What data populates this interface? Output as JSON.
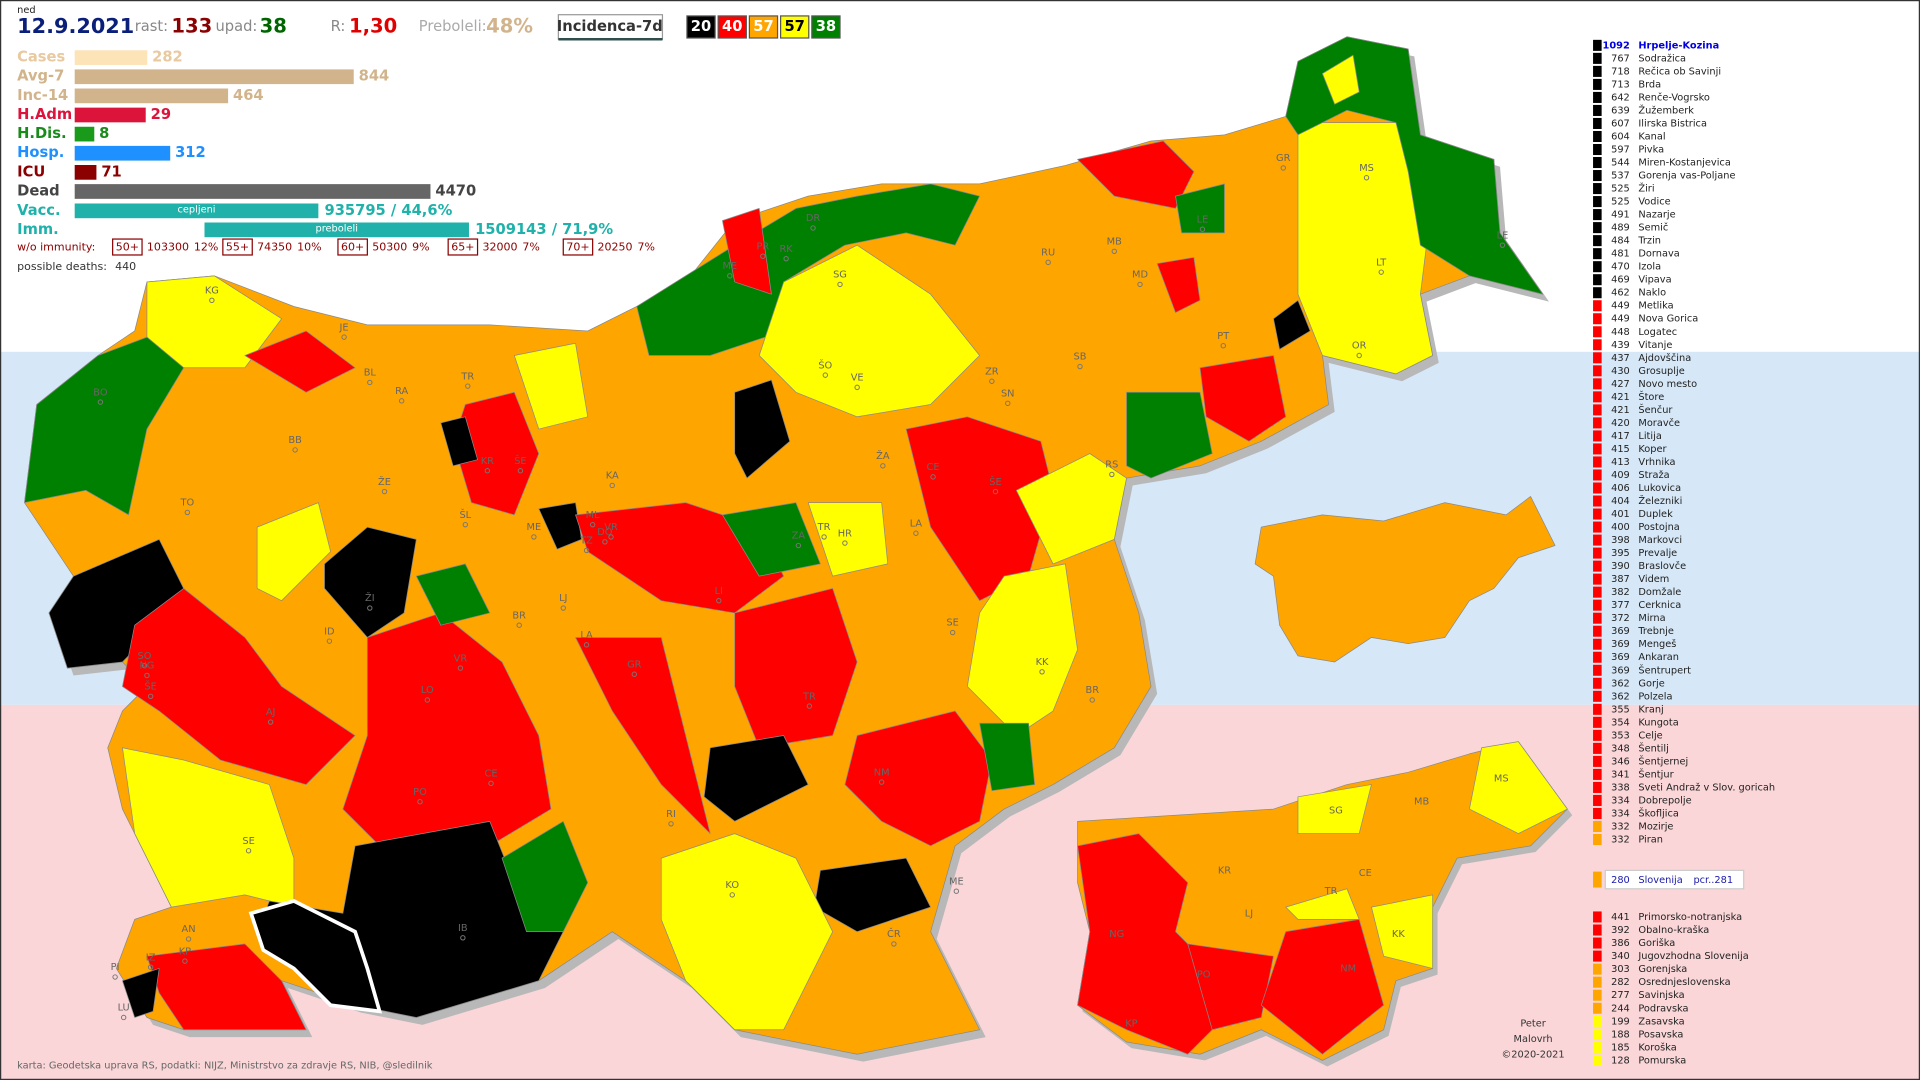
{
  "header": {
    "day": "ned",
    "date": "12.9.2021",
    "rise_label": "rast:",
    "rise": 133,
    "fall_label": "upad:",
    "fall": 38,
    "r_label": "R:",
    "r": "1,30",
    "recovered_label": "Preboleli:",
    "recovered": "48%",
    "view": "Incidenca-7d",
    "legend": [
      {
        "count": 20,
        "color": "#000000",
        "text_color": "#ffffff"
      },
      {
        "count": 40,
        "color": "#ff0000",
        "text_color": "#ffffff"
      },
      {
        "count": 57,
        "color": "#ffa500",
        "text_color": "#ffffff"
      },
      {
        "count": 57,
        "color": "#ffff00",
        "text_color": "#000000"
      },
      {
        "count": 38,
        "color": "#008000",
        "text_color": "#ffffff"
      }
    ]
  },
  "stats": [
    {
      "label": "Cases",
      "value": 282,
      "color": "#fde3b8",
      "text_color": "#e8c9a0"
    },
    {
      "label": "Avg-7",
      "value": 844,
      "color": "#d2b48c",
      "text_color": "#d2b48c"
    },
    {
      "label": "Inc-14",
      "value": 464,
      "color": "#d2b48c",
      "text_color": "#d2b48c"
    },
    {
      "label": "H.Adm",
      "value": 29,
      "color": "#dc143c",
      "text_color": "#dc143c"
    },
    {
      "label": "H.Dis.",
      "value": 8,
      "color": "#1a9a1a",
      "text_color": "#1a8a1a"
    },
    {
      "label": "Hosp.",
      "value": 312,
      "color": "#1e90ff",
      "text_color": "#1e90ff"
    },
    {
      "label": "ICU",
      "value": 71,
      "color": "#8b0000",
      "text_color": "#8b0000"
    },
    {
      "label": "Dead",
      "value": 4470,
      "color": "#666666",
      "text_color": "#444444"
    }
  ],
  "vaccination": [
    {
      "label": "Vacc.",
      "bar_label": "cepljeni",
      "value_label": "935795 / 44,6%",
      "color": "#20b2aa"
    },
    {
      "label": "Imm.",
      "bar_label": "preboleli",
      "value_label": "1509143 / 71,9%",
      "color": "#20b2aa"
    }
  ],
  "immunity": {
    "label": "w/o immunity:",
    "groups": [
      {
        "group": "50+",
        "count": 103300,
        "share": "12%"
      },
      {
        "group": "55+",
        "count": 74350,
        "share": "10%"
      },
      {
        "group": "60+",
        "count": 50300,
        "share": "9%"
      },
      {
        "group": "65+",
        "count": 32000,
        "share": "7%"
      },
      {
        "group": "70+",
        "count": 20250,
        "share": "7%"
      }
    ],
    "deaths_label": "possible deaths:",
    "deaths": 440
  },
  "ranking": [
    {
      "color": "#000000",
      "items": [
        {
          "value": 1092,
          "name": "Hrpelje-Kozina"
        },
        {
          "value": 767,
          "name": "Sodražica"
        },
        {
          "value": 718,
          "name": "Rečica ob Savinji"
        },
        {
          "value": 713,
          "name": "Brda"
        },
        {
          "value": 642,
          "name": "Renče-Vogrsko"
        },
        {
          "value": 639,
          "name": "Žužemberk"
        },
        {
          "value": 607,
          "name": "Ilirska Bistrica"
        },
        {
          "value": 604,
          "name": "Kanal"
        },
        {
          "value": 597,
          "name": "Pivka"
        },
        {
          "value": 544,
          "name": "Miren-Kostanjevica"
        },
        {
          "value": 537,
          "name": "Gorenja vas-Poljane"
        },
        {
          "value": 525,
          "name": "Žiri"
        },
        {
          "value": 525,
          "name": "Vodice"
        },
        {
          "value": 491,
          "name": "Nazarje"
        },
        {
          "value": 489,
          "name": "Semič"
        },
        {
          "value": 484,
          "name": "Trzin"
        },
        {
          "value": 481,
          "name": "Dornava"
        },
        {
          "value": 470,
          "name": "Izola"
        },
        {
          "value": 469,
          "name": "Vipava"
        },
        {
          "value": 462,
          "name": "Naklo"
        }
      ]
    },
    {
      "color": "#ff0000",
      "items": [
        {
          "value": 449,
          "name": "Metlika"
        },
        {
          "value": 449,
          "name": "Nova Gorica"
        },
        {
          "value": 448,
          "name": "Logatec"
        },
        {
          "value": 439,
          "name": "Vitanje"
        },
        {
          "value": 437,
          "name": "Ajdovščina"
        },
        {
          "value": 430,
          "name": "Grosuplje"
        },
        {
          "value": 427,
          "name": "Novo mesto"
        },
        {
          "value": 421,
          "name": "Štore"
        },
        {
          "value": 421,
          "name": "Šenčur"
        },
        {
          "value": 420,
          "name": "Moravče"
        },
        {
          "value": 417,
          "name": "Litija"
        },
        {
          "value": 415,
          "name": "Koper"
        },
        {
          "value": 413,
          "name": "Vrhnika"
        },
        {
          "value": 409,
          "name": "Straža"
        },
        {
          "value": 406,
          "name": "Lukovica"
        },
        {
          "value": 404,
          "name": "Železniki"
        },
        {
          "value": 401,
          "name": "Duplek"
        },
        {
          "value": 400,
          "name": "Postojna"
        },
        {
          "value": 398,
          "name": "Markovci"
        },
        {
          "value": 395,
          "name": "Prevalje"
        },
        {
          "value": 390,
          "name": "Braslovče"
        },
        {
          "value": 387,
          "name": "Videm"
        },
        {
          "value": 382,
          "name": "Domžale"
        },
        {
          "value": 377,
          "name": "Cerknica"
        },
        {
          "value": 372,
          "name": "Mirna"
        },
        {
          "value": 369,
          "name": "Trebnje"
        },
        {
          "value": 369,
          "name": "Mengeš"
        },
        {
          "value": 369,
          "name": "Ankaran"
        },
        {
          "value": 369,
          "name": "Šentrupert"
        },
        {
          "value": 362,
          "name": "Gorje"
        },
        {
          "value": 362,
          "name": "Polzela"
        },
        {
          "value": 355,
          "name": "Kranj"
        },
        {
          "value": 354,
          "name": "Kungota"
        },
        {
          "value": 353,
          "name": "Celje"
        },
        {
          "value": 348,
          "name": "Šentilj"
        },
        {
          "value": 346,
          "name": "Šentjernej"
        },
        {
          "value": 341,
          "name": "Šentjur"
        },
        {
          "value": 338,
          "name": "Sveti Andraž v Slov. goricah"
        },
        {
          "value": 334,
          "name": "Dobrepolje"
        },
        {
          "value": 334,
          "name": "Škofljica"
        }
      ]
    },
    {
      "color": "#ffa500",
      "items": [
        {
          "value": 332,
          "name": "Mozirje"
        },
        {
          "value": 332,
          "name": "Piran"
        }
      ]
    }
  ],
  "national": {
    "value": 280,
    "name": "Slovenija",
    "pcr_label": "pcr..281",
    "color": "#ffa500"
  },
  "regions": [
    {
      "value": 441,
      "name": "Primorsko-notranjska",
      "color": "#ff0000"
    },
    {
      "value": 392,
      "name": "Obalno-kraška",
      "color": "#ff0000"
    },
    {
      "value": 386,
      "name": "Goriška",
      "color": "#ff0000"
    },
    {
      "value": 340,
      "name": "Jugovzhodna Slovenija",
      "color": "#ff0000"
    },
    {
      "value": 303,
      "name": "Gorenjska",
      "color": "#ffa500"
    },
    {
      "value": 282,
      "name": "Osrednjeslovenska",
      "color": "#ffa500"
    },
    {
      "value": 277,
      "name": "Savinjska",
      "color": "#ffa500"
    },
    {
      "value": 244,
      "name": "Podravska",
      "color": "#ffa500"
    },
    {
      "value": 199,
      "name": "Zasavska",
      "color": "#ffff00"
    },
    {
      "value": 188,
      "name": "Posavska",
      "color": "#ffff00"
    },
    {
      "value": 185,
      "name": "Koroška",
      "color": "#ffff00"
    },
    {
      "value": 128,
      "name": "Pomurska",
      "color": "#ffff00"
    }
  ],
  "map_labels": [
    "KG",
    "JE",
    "BO",
    "BL",
    "RA",
    "TR",
    "BB",
    "ŽE",
    "KR",
    "ŠE",
    "KA",
    "TO",
    "ML",
    "ŠL",
    "ME",
    "TZ",
    "VR",
    "DO",
    "ŽI",
    "ID",
    "BR",
    "LJ",
    "LA",
    "GR",
    "LI",
    "SO",
    "NG",
    "ŠE",
    "AJ",
    "LO",
    "VR",
    "PO",
    "CE",
    "SE",
    "IB",
    "AN",
    "KP",
    "PI",
    "IZ",
    "LU",
    "DR",
    "PR",
    "RK",
    "SG",
    "ME",
    "MB",
    "RU",
    "MD",
    "LE",
    "MS",
    "GR",
    "LT",
    "LE",
    "PT",
    "OR",
    "SB",
    "ŠO",
    "VE",
    "ŽA",
    "CE",
    "ŠE",
    "ZR",
    "SN",
    "RS",
    "ZA",
    "TR",
    "HR",
    "LA",
    "SE",
    "KK",
    "BR",
    "NM",
    "TR",
    "ME",
    "KO",
    "ČR",
    "RI"
  ],
  "region_map_labels": [
    "MS",
    "SG",
    "MB",
    "KR",
    "CE",
    "TR",
    "LJ",
    "KK",
    "NG",
    "PO",
    "NM",
    "KP"
  ],
  "credits": [
    "Peter",
    "Malovrh",
    "©2020-2021"
  ],
  "source": "karta: Geodetska uprava RS,  podatki: NIJZ, Ministrstvo za zdravje RS, NIB, @sledilnik"
}
